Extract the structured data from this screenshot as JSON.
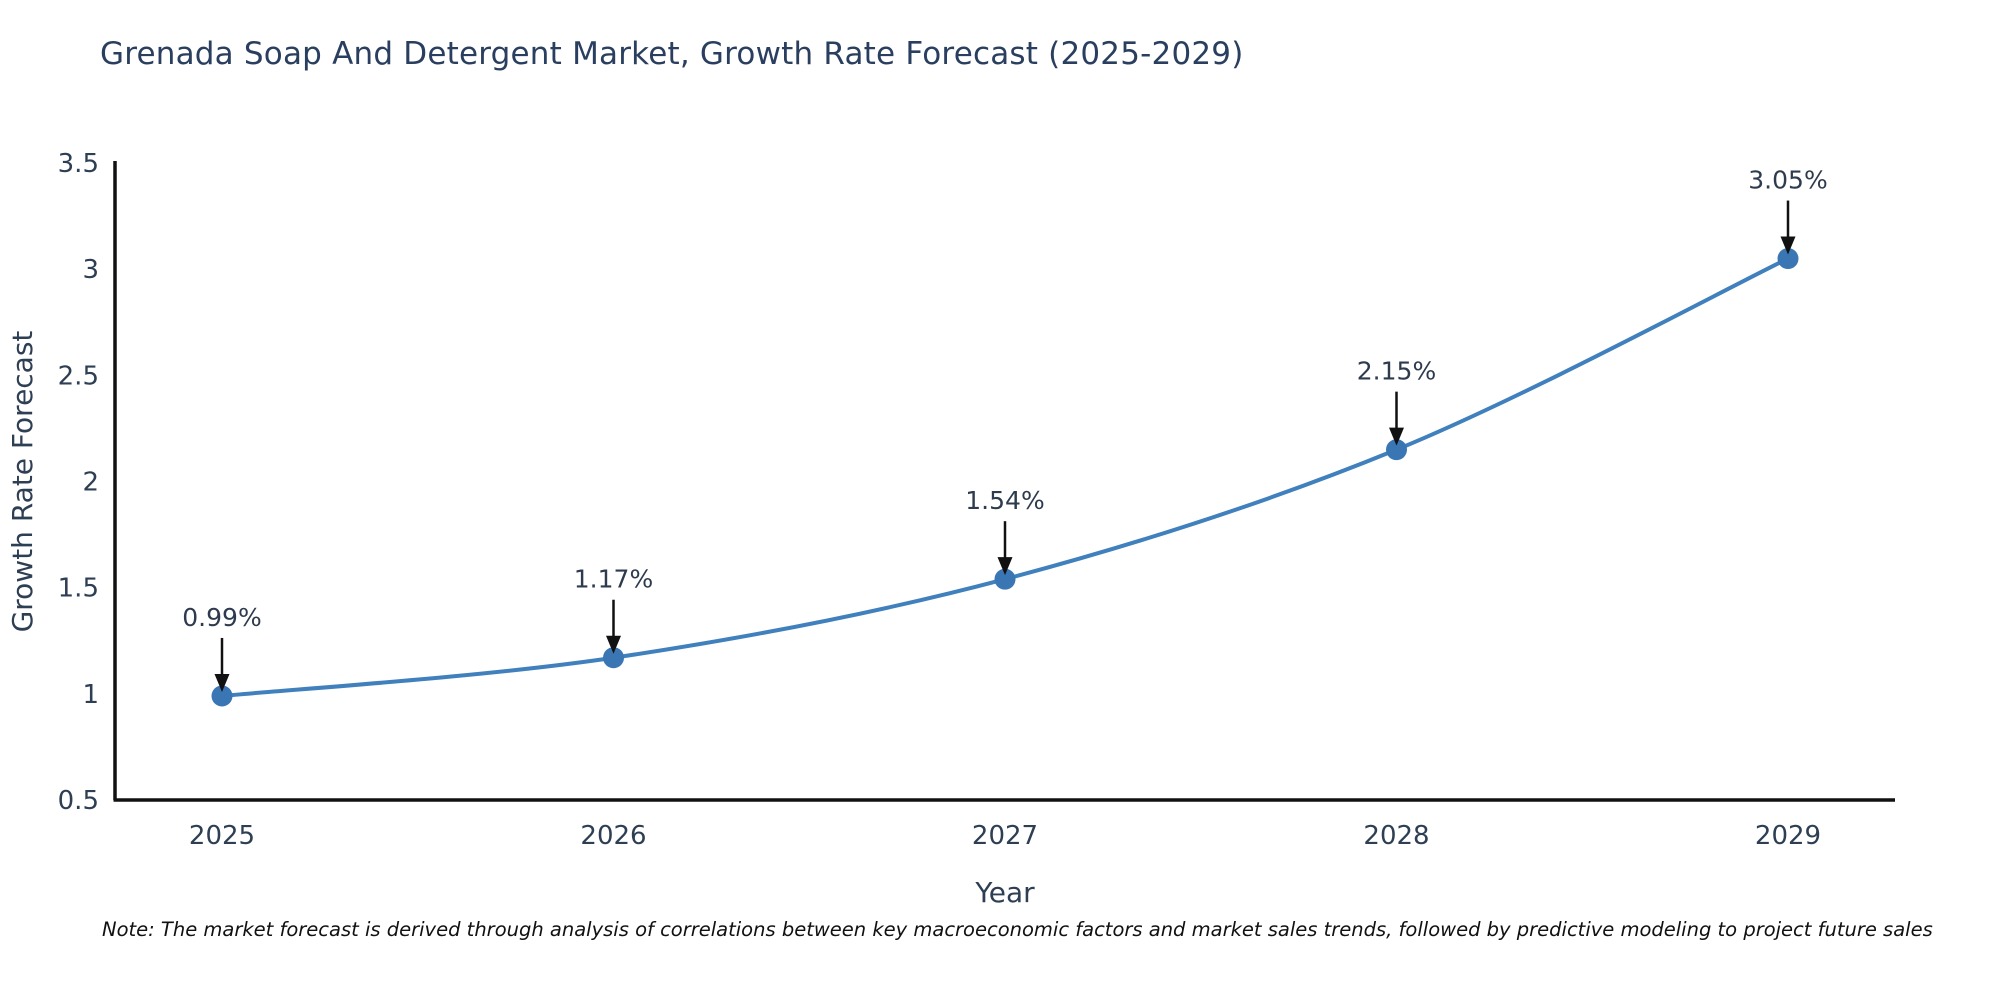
{
  "title": "Grenada Soap And Detergent Market, Growth Rate Forecast (2025-2029)",
  "note": "Note: The market forecast is derived through analysis of correlations between key macroeconomic factors and market sales trends, followed by predictive modeling to project future sales",
  "chart_data": {
    "type": "line",
    "title": "Grenada Soap And Detergent Market, Growth Rate Forecast (2025-2029)",
    "x": [
      2025,
      2026,
      2027,
      2028,
      2029
    ],
    "series": [
      {
        "name": "Growth Rate Forecast",
        "values": [
          0.99,
          1.17,
          1.54,
          2.15,
          3.05
        ],
        "point_labels": [
          "0.99%",
          "1.17%",
          "1.54%",
          "2.15%",
          "3.05%"
        ]
      }
    ],
    "xlabel": "Year",
    "ylabel": "Growth Rate Forecast",
    "ylim": [
      0.5,
      3.5
    ],
    "yticks": [
      0.5,
      1,
      1.5,
      2,
      2.5,
      3,
      3.5
    ],
    "xticks": [
      "2025",
      "2026",
      "2027",
      "2028",
      "2029"
    ],
    "grid": false,
    "legend_position": "none",
    "line_shape": "spline",
    "marker": "circle",
    "annotation_arrows": true,
    "colors": {
      "line": "#4080bd",
      "marker": "#3a76b3",
      "tick_text": "#2e3f54",
      "title_text": "#2a3f5f",
      "axis_spine": "#111111",
      "annotation_text": "#2e3b4e",
      "annotation_arrow": "#111111",
      "background": "#ffffff"
    }
  }
}
